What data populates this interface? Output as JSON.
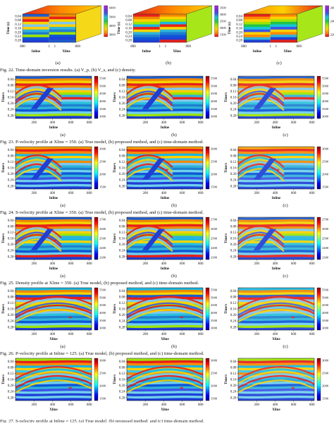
{
  "colors": {
    "jet": [
      "#00008f",
      "#0000ff",
      "#007fff",
      "#00ffff",
      "#7fff7f",
      "#ffff00",
      "#ff7f00",
      "#ff0000",
      "#7f0000"
    ],
    "seis": [
      "#e9001f",
      "#ff8a00",
      "#ffd000",
      "#9ee400",
      "#20c34a",
      "#16c6d6",
      "#3b54e8",
      "#7a2bd8",
      "#b02ad5"
    ]
  },
  "row0": {
    "caption": "Fig. 22.   Time-domain inversion results. (a) V_p, (b) V_s, and (c) density.",
    "panels": [
      {
        "label": "(a)",
        "cbar": [
          "6000",
          "5000",
          "4000",
          "3000"
        ]
      },
      {
        "label": "(b)",
        "cbar": [
          "3500",
          "3000",
          "2500",
          "2000",
          "1500"
        ]
      },
      {
        "label": "(c)",
        "cbar": [
          "2600",
          "2400",
          "2200"
        ]
      }
    ],
    "ylabel": "Time (s)",
    "yticks": [
      "0.04",
      "0.08",
      "0.12",
      "0.16",
      "0.20",
      "0.24",
      "0.28"
    ],
    "xlabel_inline": "Inline",
    "xlabel_xline": "Xline",
    "ticks_inline": [
      "800",
      "400",
      "1"
    ],
    "ticks_xline": [
      "1",
      "1",
      "800"
    ]
  },
  "row1": {
    "caption": "Fig. 23.   P-velocity profile at Xline = 350. (a) True model, (b) proposed method, and (c) time-domain method.",
    "xlabel": "Inline",
    "ylabel": "Time/s",
    "yticks": [
      "0.04",
      "0.08",
      "0.12",
      "0.16",
      "0.20",
      "0.24",
      "0.28"
    ],
    "xticks": [
      "200",
      "400",
      "600",
      "800"
    ],
    "cbar": [
      "5500",
      "5000",
      "4500",
      "4000",
      "3500",
      "3000"
    ],
    "panels": [
      {
        "label": "(a)"
      },
      {
        "label": "(b)"
      },
      {
        "label": "(c)"
      }
    ]
  },
  "row2": {
    "caption": "Fig. 24.   S-velocity profile at Xline = 350. (a) True model, (b) proposed method, and (c) time-domain method.",
    "xlabel": "Inline",
    "ylabel": "Time/s",
    "yticks": [
      "0.04",
      "0.08",
      "0.12",
      "0.16",
      "0.20",
      "0.24",
      "0.28"
    ],
    "xticks": [
      "200",
      "400",
      "600",
      "800"
    ],
    "cbar": [
      "3000",
      "2500",
      "2000",
      "1500"
    ],
    "panels": [
      {
        "label": "(a)"
      },
      {
        "label": "(b)"
      },
      {
        "label": "(c)"
      }
    ]
  },
  "row3": {
    "caption": "Fig. 25.   Density profile at Xline = 350. (a) True model, (b) proposed method, and (c) time-domain method.",
    "xlabel": "Inline",
    "ylabel": "Time/s",
    "yticks": [
      "0.04",
      "0.08",
      "0.12",
      "0.16",
      "0.20",
      "0.24",
      "0.28"
    ],
    "xticks": [
      "200",
      "400",
      "600",
      "800"
    ],
    "cbar": [
      "2700",
      "2600",
      "2500",
      "2400",
      "2300"
    ],
    "panels": [
      {
        "label": "(a)"
      },
      {
        "label": "(b)"
      },
      {
        "label": "(c)"
      }
    ]
  },
  "row4": {
    "caption": "Fig. 26.   P-velocity profile at Inline = 125. (a) True model, (b) proposed method, and (c) time-domain method.",
    "xlabel": "Xline",
    "ylabel": "Time/s",
    "yticks": [
      "0.04",
      "0.08",
      "0.12",
      "0.16",
      "0.20",
      "0.24",
      "0.28"
    ],
    "xticks": [
      "200",
      "400",
      "600",
      "800"
    ],
    "cbar": [
      "5500",
      "5000",
      "4500",
      "4000",
      "3500",
      "3000"
    ],
    "panels": [
      {
        "label": "(a)"
      },
      {
        "label": "(b)"
      },
      {
        "label": "(c)"
      }
    ]
  },
  "row5": {
    "caption": "Fig. 27.   S-velocity profile at Inline = 125. (a) True model, (b) proposed method, and (c) time-domain method.",
    "xlabel": "Xline",
    "ylabel": "Time/s",
    "yticks": [
      "0.04",
      "0.08",
      "0.12",
      "0.16",
      "0.20",
      "0.24",
      "0.28"
    ],
    "xticks": [
      "200",
      "400",
      "600",
      "800"
    ],
    "cbar": [
      "3000",
      "2500",
      "2000",
      "1500"
    ],
    "panels": [
      {
        "label": "(a)"
      },
      {
        "label": "(b)"
      },
      {
        "label": "(c)"
      }
    ]
  }
}
